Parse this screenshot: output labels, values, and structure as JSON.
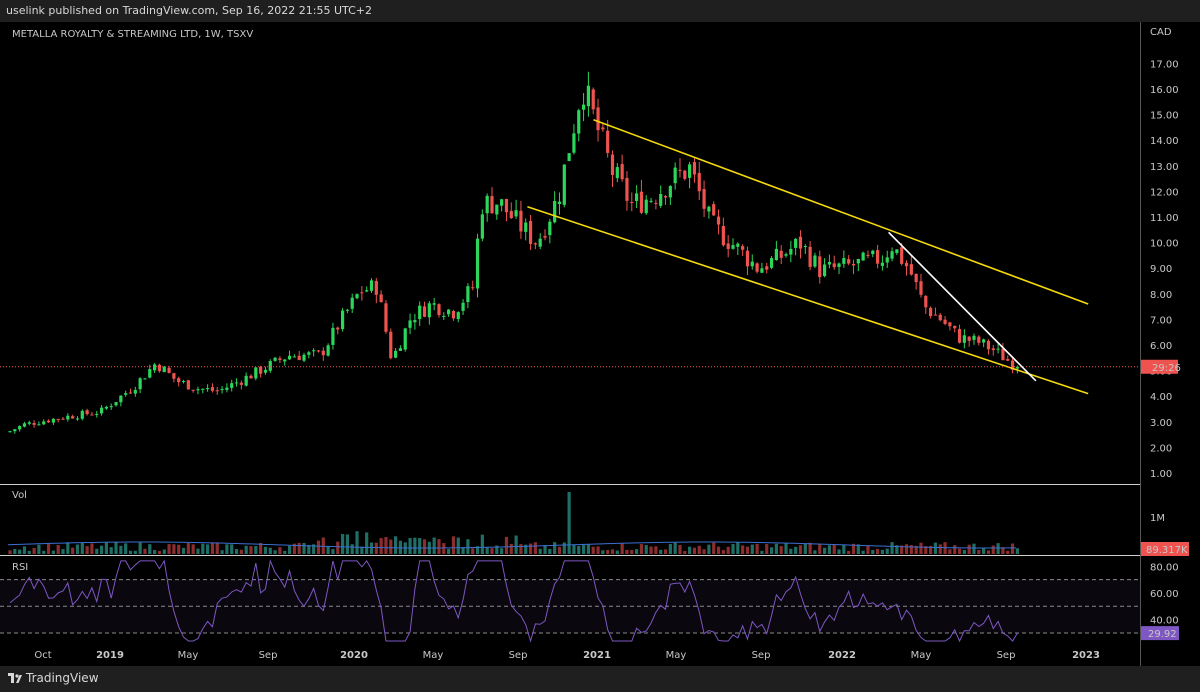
{
  "header": {
    "published": "uselink published on TradingView.com, Sep 16, 2022 21:55 UTC+2"
  },
  "footer": {
    "brand": "TradingView"
  },
  "colors": {
    "up": "#26a69a",
    "upBright": "#2bd65a",
    "down": "#ef5350",
    "channel": "#f5d90a",
    "wedge": "#ffffff",
    "rsi": "#7e57c2",
    "lastPrice": "#ef5350"
  },
  "chart_data": {
    "type": "candlestick",
    "title": "METALLA ROYALTY & STREAMING LTD, 1W, TSXV",
    "currency": "CAD",
    "ylim": [
      0.5,
      18
    ],
    "y_ticks": [
      "17.00",
      "16.00",
      "15.00",
      "14.00",
      "13.00",
      "12.00",
      "11.00",
      "10.00",
      "9.00",
      "8.00",
      "7.00",
      "6.00",
      "5.00",
      "4.00",
      "3.00",
      "2.00",
      "1.00"
    ],
    "x_ticks": [
      "Oct",
      "2019",
      "May",
      "Sep",
      "2020",
      "May",
      "Sep",
      "2021",
      "May",
      "Sep",
      "2022",
      "May",
      "Sep",
      "2023"
    ],
    "price_path": [
      [
        "2018-09-07",
        2.6
      ],
      [
        "2018-10-01",
        2.9
      ],
      [
        "2018-12-01",
        3.2
      ],
      [
        "2019-01-20",
        3.4
      ],
      [
        "2019-03-10",
        4.4
      ],
      [
        "2019-04-10",
        5.3
      ],
      [
        "2019-05-10",
        4.6
      ],
      [
        "2019-06-10",
        4.3
      ],
      [
        "2019-07-10",
        4.2
      ],
      [
        "2019-08-10",
        4.6
      ],
      [
        "2019-09-15",
        5.1
      ],
      [
        "2019-10-20",
        5.6
      ],
      [
        "2019-12-05",
        5.6
      ],
      [
        "2020-01-05",
        7.0
      ],
      [
        "2020-02-01",
        8.1
      ],
      [
        "2020-02-25",
        8.3
      ],
      [
        "2020-03-18",
        5.4
      ],
      [
        "2020-04-15",
        7.1
      ],
      [
        "2020-05-15",
        7.6
      ],
      [
        "2020-06-15",
        7.3
      ],
      [
        "2020-07-15",
        8.3
      ],
      [
        "2020-07-25",
        11.5
      ],
      [
        "2020-08-20",
        11.6
      ],
      [
        "2020-09-15",
        10.8
      ],
      [
        "2020-10-15",
        10.0
      ],
      [
        "2020-11-15",
        11.8
      ],
      [
        "2020-12-05",
        14.3
      ],
      [
        "2020-12-20",
        16.2
      ],
      [
        "2021-01-05",
        14.9
      ],
      [
        "2021-02-01",
        12.8
      ],
      [
        "2021-03-01",
        11.5
      ],
      [
        "2021-04-01",
        11.8
      ],
      [
        "2021-05-01",
        12.5
      ],
      [
        "2021-05-25",
        12.9
      ],
      [
        "2021-06-25",
        10.7
      ],
      [
        "2021-08-01",
        9.8
      ],
      [
        "2021-09-01",
        9.0
      ],
      [
        "2021-10-01",
        9.4
      ],
      [
        "2021-11-01",
        10.0
      ],
      [
        "2021-12-01",
        8.9
      ],
      [
        "2022-01-15",
        9.1
      ],
      [
        "2022-03-01",
        9.4
      ],
      [
        "2022-03-15",
        9.9
      ],
      [
        "2022-04-10",
        8.9
      ],
      [
        "2022-05-01",
        7.5
      ],
      [
        "2022-05-25",
        7.0
      ],
      [
        "2022-06-20",
        6.3
      ],
      [
        "2022-07-20",
        6.1
      ],
      [
        "2022-08-10",
        5.8
      ],
      [
        "2022-09-12",
        5.15
      ]
    ],
    "last_price_label": "29:26",
    "trendlines": [
      {
        "name": "channel-top",
        "from": [
          "2021-01-05",
          14.8
        ],
        "to": [
          "2022-12-25",
          7.6
        ]
      },
      {
        "name": "channel-bottom",
        "from": [
          "2020-10-01",
          11.4
        ],
        "to": [
          "2022-12-25",
          4.1
        ]
      },
      {
        "name": "wedge-top",
        "from": [
          "2022-03-10",
          10.4
        ],
        "to": [
          "2022-10-10",
          4.6
        ]
      }
    ],
    "volume": {
      "label": "Vol",
      "tick": "1M",
      "last": "89.317K",
      "spike_date": "2020-12-01"
    },
    "rsi": {
      "label": "RSI",
      "ticks": [
        "80.00",
        "60.00",
        "40.00"
      ],
      "last": "29.92",
      "bands": [
        70,
        50,
        30
      ]
    }
  }
}
